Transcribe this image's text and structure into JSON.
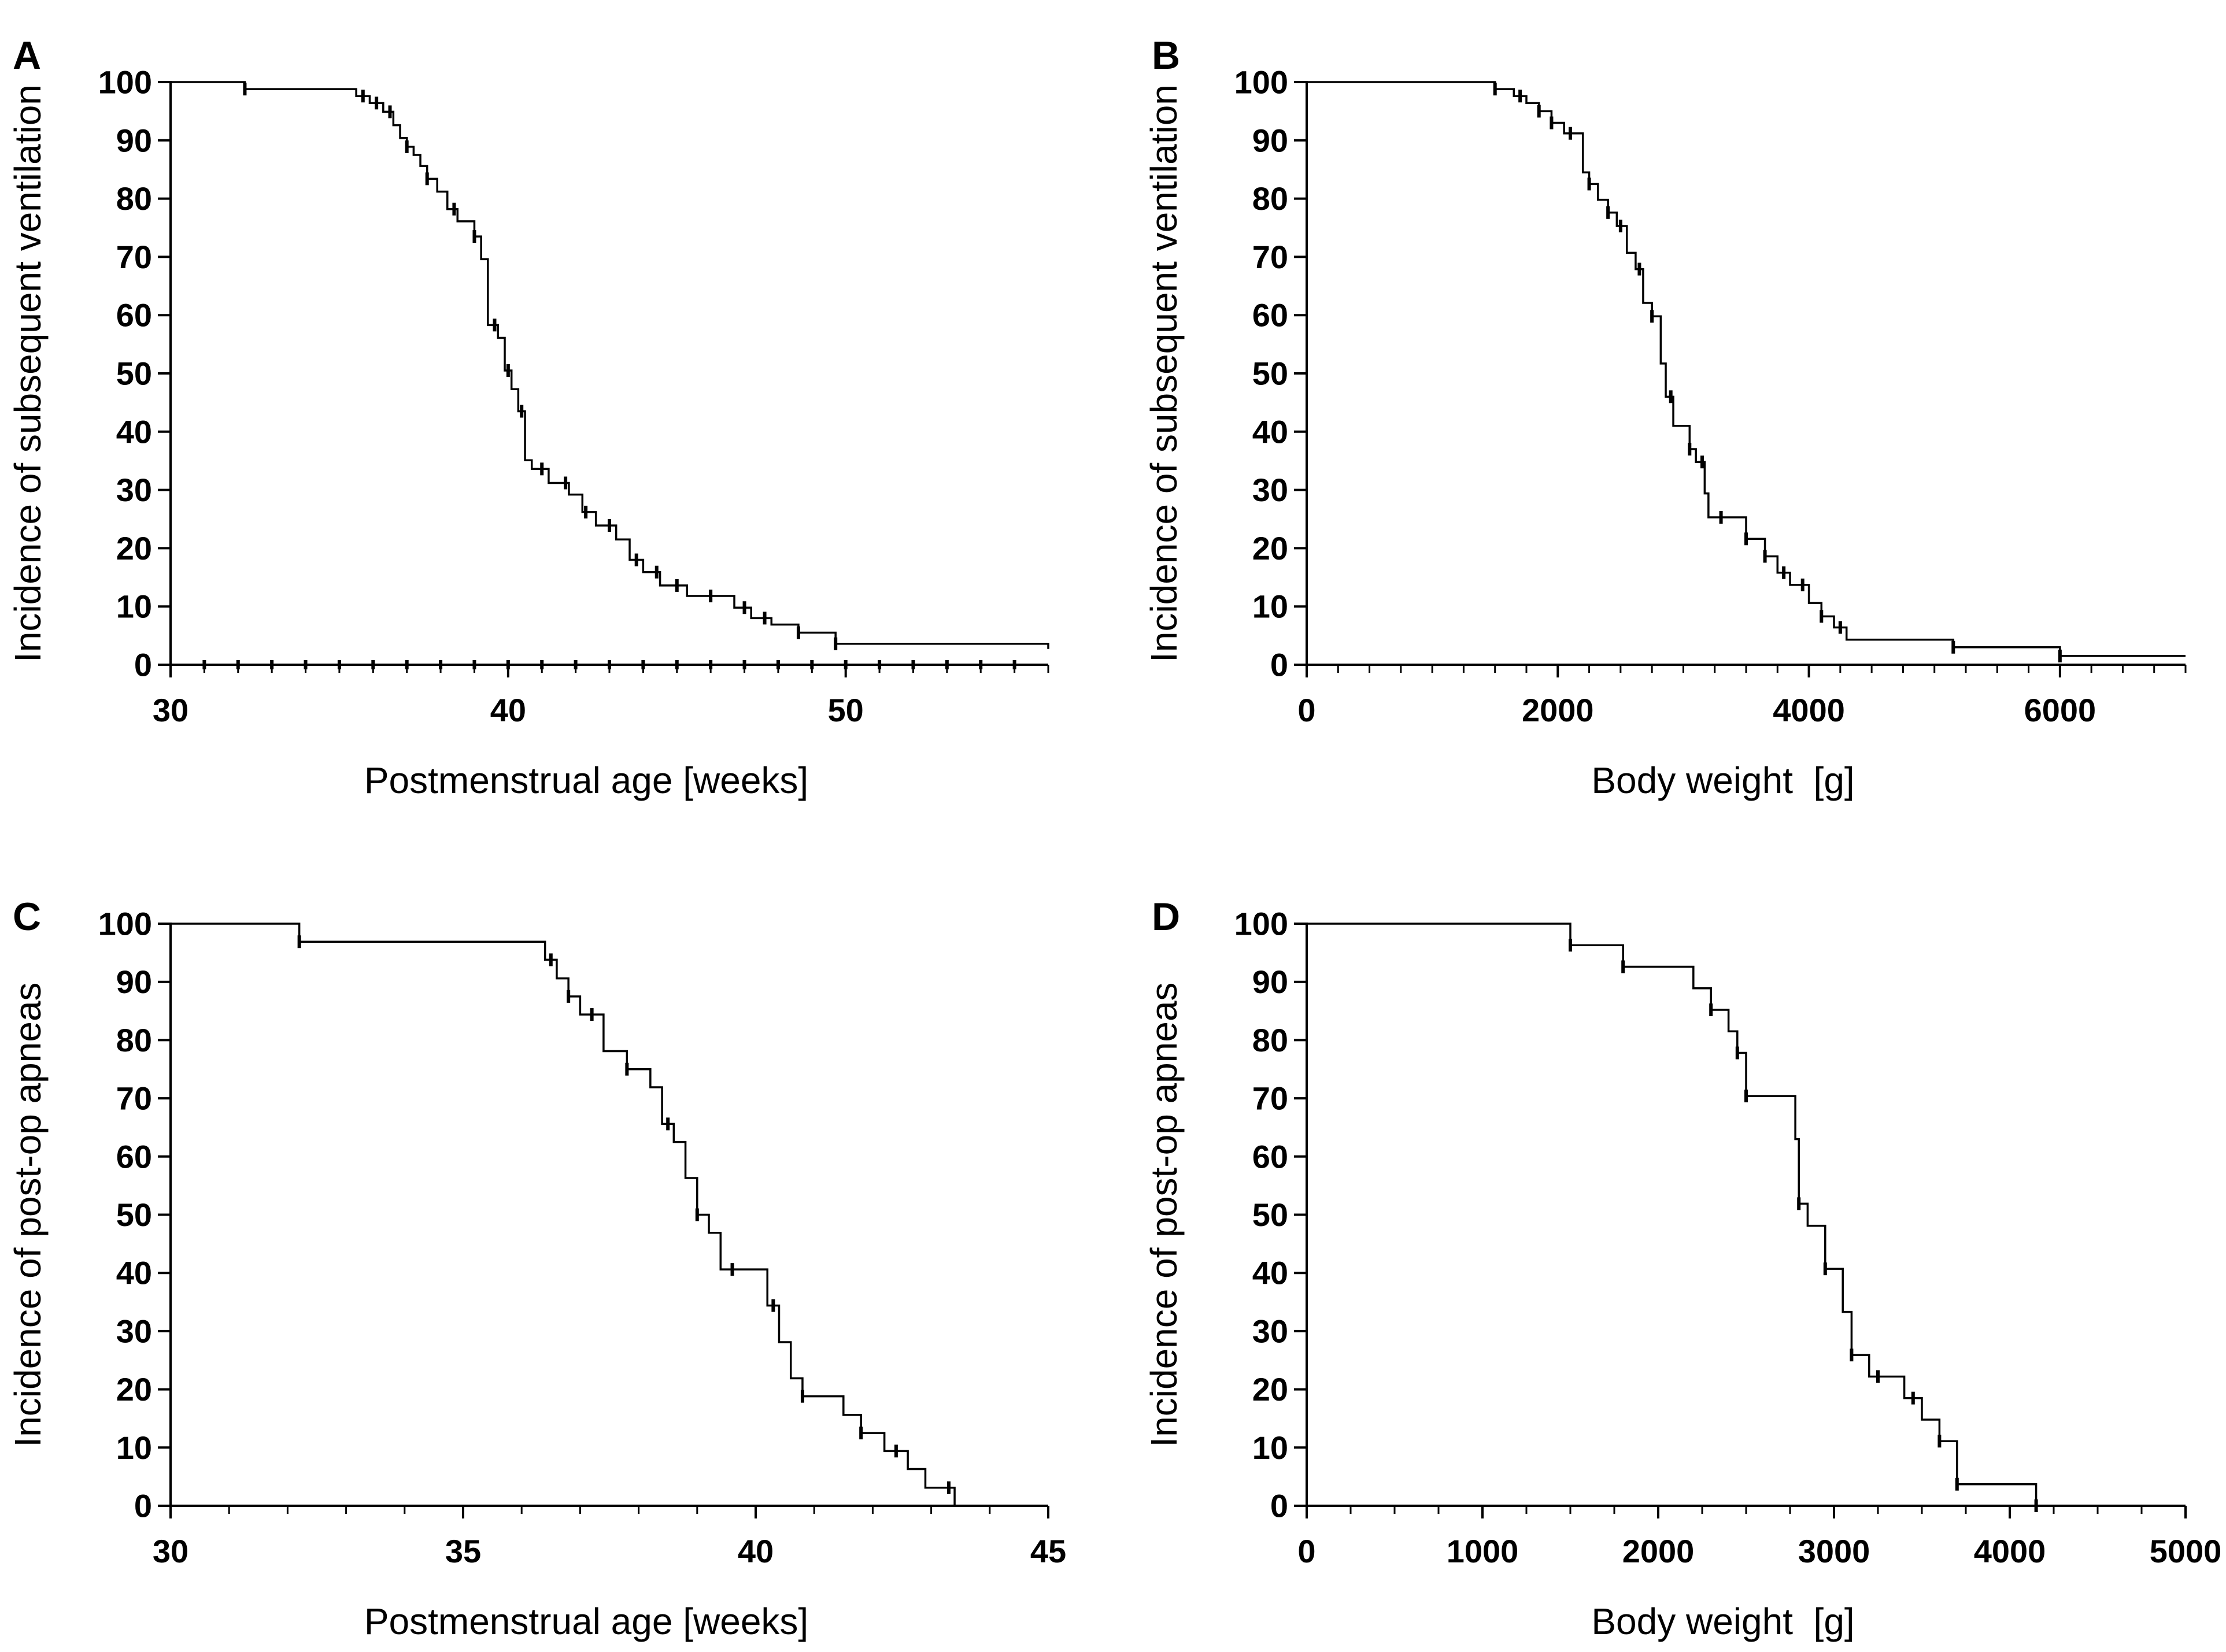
{
  "chart_data": [
    {
      "panel": "A",
      "type": "line",
      "subtype": "kaplan-meier step",
      "xlabel": "Postmenstrual age [weeks]",
      "ylabel": "Incidence of subsequent ventilation",
      "xlim": [
        30,
        56
      ],
      "ylim": [
        0,
        100
      ],
      "xticks": [
        30,
        40,
        50
      ],
      "yticks": [
        0,
        10,
        20,
        30,
        40,
        50,
        60,
        70,
        80,
        90,
        100
      ],
      "x_minor_step": 1,
      "series": [
        {
          "name": "ventilation",
          "x": [
            30,
            32.2,
            35.5,
            35.9,
            36.3,
            36.6,
            36.8,
            37.0,
            37.2,
            37.4,
            37.6,
            37.9,
            38.2,
            38.5,
            39.0,
            39.2,
            39.4,
            39.7,
            39.9,
            40.1,
            40.3,
            40.5,
            40.7,
            41.2,
            41.8,
            42.2,
            42.6,
            43.2,
            43.6,
            44.0,
            44.5,
            45.3,
            46.7,
            47.2,
            47.8,
            48.6,
            49.7,
            56
          ],
          "y": [
            100,
            98.8,
            97.6,
            96.4,
            94.9,
            92.6,
            90.4,
            88.9,
            87.5,
            85.6,
            83.4,
            81.2,
            78.2,
            76.1,
            73.5,
            69.6,
            58.3,
            56.1,
            50.5,
            47.3,
            43.5,
            35.1,
            33.6,
            31.2,
            29.2,
            26.2,
            23.9,
            21.5,
            18.0,
            15.9,
            13.6,
            11.8,
            9.8,
            8.0,
            6.9,
            5.5,
            3.6,
            2.7
          ],
          "censored_x": [
            32.2,
            35.7,
            36.1,
            36.5,
            37.0,
            37.6,
            38.4,
            39.0,
            39.6,
            40.0,
            40.4,
            41.0,
            41.7,
            42.3,
            43.0,
            43.8,
            44.4,
            45.0,
            46.0,
            47.0,
            47.6,
            48.6,
            49.7
          ],
          "baseline_censored_x": [
            31,
            32,
            33,
            34,
            35,
            36,
            37,
            38,
            39,
            40,
            41,
            42,
            43,
            44,
            45,
            46,
            47,
            48,
            49,
            50,
            51,
            52,
            53,
            54,
            55
          ]
        }
      ]
    },
    {
      "panel": "B",
      "type": "line",
      "subtype": "kaplan-meier step",
      "xlabel": "Body weight  [g]",
      "ylabel": "Incidence of subsequent ventilation",
      "xlim": [
        0,
        7000
      ],
      "ylim": [
        0,
        100
      ],
      "xticks": [
        0,
        2000,
        4000,
        6000
      ],
      "yticks": [
        0,
        10,
        20,
        30,
        40,
        50,
        60,
        70,
        80,
        90,
        100
      ],
      "x_minor_step": 250,
      "series": [
        {
          "name": "ventilation",
          "x": [
            0,
            1500,
            1650,
            1750,
            1850,
            1950,
            2050,
            2200,
            2250,
            2320,
            2400,
            2470,
            2550,
            2620,
            2680,
            2750,
            2820,
            2860,
            2920,
            3050,
            3100,
            3170,
            3200,
            3500,
            3650,
            3750,
            3850,
            4000,
            4100,
            4200,
            4300,
            5150,
            6000,
            7000
          ],
          "y": [
            100,
            98.8,
            97.6,
            96.4,
            95.0,
            93.0,
            91.2,
            84.5,
            82.5,
            79.8,
            77.6,
            75.3,
            70.7,
            67.9,
            62.1,
            59.8,
            51.7,
            46.0,
            41.0,
            37.0,
            34.8,
            29.4,
            25.3,
            21.6,
            18.6,
            15.8,
            13.7,
            10.6,
            8.3,
            6.4,
            4.3,
            3.0,
            1.5,
            1.5
          ],
          "censored_x": [
            1500,
            1700,
            1850,
            1950,
            2100,
            2250,
            2400,
            2500,
            2650,
            2750,
            2900,
            3050,
            3150,
            3300,
            3500,
            3650,
            3800,
            3950,
            4100,
            4250,
            5150,
            6000
          ]
        }
      ]
    },
    {
      "panel": "C",
      "type": "line",
      "subtype": "kaplan-meier step",
      "xlabel": "Postmenstrual age [weeks]",
      "ylabel": "Incidence of post-op apneas",
      "xlim": [
        30,
        45
      ],
      "ylim": [
        0,
        100
      ],
      "xticks": [
        30,
        35,
        40,
        45
      ],
      "yticks": [
        0,
        10,
        20,
        30,
        40,
        50,
        60,
        70,
        80,
        90,
        100
      ],
      "x_minor_step": 1,
      "series": [
        {
          "name": "apneas",
          "x": [
            30,
            32.2,
            36.4,
            36.6,
            36.8,
            37.0,
            37.4,
            37.8,
            38.2,
            38.4,
            38.6,
            38.8,
            39.0,
            39.2,
            39.4,
            40.2,
            40.4,
            40.6,
            40.8,
            41.5,
            41.8,
            42.2,
            42.6,
            42.9,
            43.4
          ],
          "y": [
            100,
            96.9,
            93.8,
            90.6,
            87.5,
            84.4,
            78.1,
            75.0,
            71.9,
            65.6,
            62.5,
            56.3,
            50.0,
            46.9,
            40.6,
            34.4,
            28.1,
            21.9,
            18.8,
            15.6,
            12.5,
            9.4,
            6.3,
            3.1,
            0
          ],
          "censored_x": [
            32.2,
            36.5,
            36.8,
            37.2,
            37.8,
            38.5,
            39.0,
            39.6,
            40.3,
            40.8,
            41.8,
            42.4,
            43.3
          ]
        }
      ]
    },
    {
      "panel": "D",
      "type": "line",
      "subtype": "kaplan-meier step",
      "xlabel": "Body weight  [g]",
      "ylabel": "Incidence of post-op apneas",
      "xlim": [
        0,
        5000
      ],
      "ylim": [
        0,
        100
      ],
      "xticks": [
        0,
        1000,
        2000,
        3000,
        4000,
        5000
      ],
      "yticks": [
        0,
        10,
        20,
        30,
        40,
        50,
        60,
        70,
        80,
        90,
        100
      ],
      "x_minor_step": 250,
      "series": [
        {
          "name": "apneas",
          "x": [
            0,
            1500,
            1800,
            2200,
            2300,
            2400,
            2450,
            2500,
            2780,
            2800,
            2850,
            2950,
            3050,
            3100,
            3200,
            3400,
            3500,
            3600,
            3700,
            4150
          ],
          "y": [
            100,
            96.3,
            92.6,
            88.9,
            85.2,
            81.5,
            77.8,
            70.4,
            63.0,
            51.9,
            48.1,
            40.7,
            33.3,
            25.9,
            22.2,
            18.5,
            14.8,
            11.1,
            3.7,
            0
          ],
          "censored_x": [
            1500,
            1800,
            2300,
            2450,
            2500,
            2800,
            2950,
            3100,
            3250,
            3450,
            3600,
            3700,
            4150
          ]
        }
      ]
    }
  ]
}
